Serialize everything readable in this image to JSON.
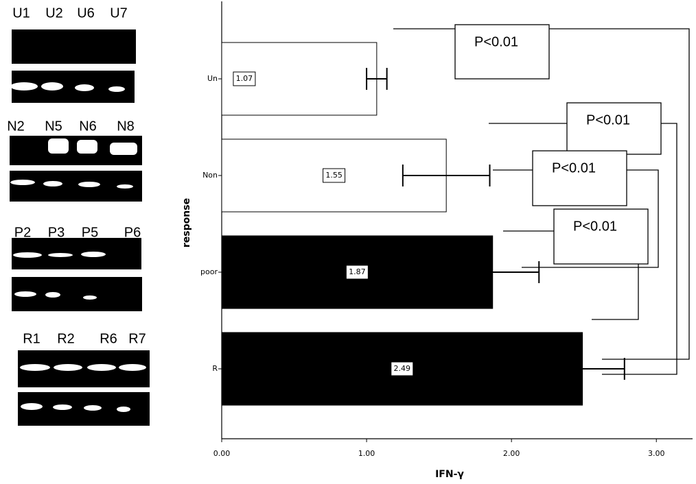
{
  "chart_data": {
    "type": "bar",
    "orientation": "horizontal",
    "x_label": "response",
    "y_label": "IFN-γ",
    "categories": [
      "Un",
      "Non",
      "poor",
      "R"
    ],
    "values": [
      1.07,
      1.55,
      1.87,
      2.49
    ],
    "errors": [
      0.07,
      0.3,
      0.32,
      0.29
    ],
    "colors": [
      "#ffffff",
      "#ffffff",
      "#000000",
      "#000000"
    ],
    "xlim": [
      0,
      3.25
    ],
    "xticks": [
      {
        "value": 0,
        "label": "0.00"
      },
      {
        "value": 1,
        "label": "1.00"
      },
      {
        "value": 2,
        "label": "2.00"
      },
      {
        "value": 3,
        "label": "3.00"
      }
    ],
    "annotations": [
      "P<0.01",
      "P<0.01",
      "P<0.01",
      "P<0.01"
    ]
  },
  "gels": [
    {
      "lanes": [
        "U1",
        "U2",
        "U6",
        "U7"
      ]
    },
    {
      "lanes": [
        "N2",
        "N5",
        "N6",
        "N8"
      ]
    },
    {
      "lanes": [
        "P2",
        "P3",
        "P5",
        "P6"
      ]
    },
    {
      "lanes": [
        "R1",
        "R2",
        "R6",
        "R7"
      ]
    }
  ]
}
